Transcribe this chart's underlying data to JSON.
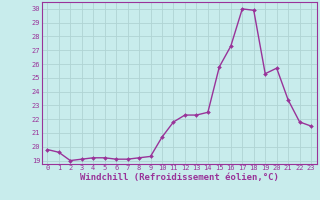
{
  "x": [
    0,
    1,
    2,
    3,
    4,
    5,
    6,
    7,
    8,
    9,
    10,
    11,
    12,
    13,
    14,
    15,
    16,
    17,
    18,
    19,
    20,
    21,
    22,
    23
  ],
  "y": [
    19.8,
    19.6,
    19.0,
    19.1,
    19.2,
    19.2,
    19.1,
    19.1,
    19.2,
    19.3,
    20.7,
    21.8,
    22.3,
    22.3,
    22.5,
    25.8,
    27.3,
    30.0,
    29.9,
    25.3,
    25.7,
    23.4,
    21.8,
    21.5
  ],
  "line_color": "#993399",
  "marker": "D",
  "marker_size": 2.0,
  "bg_color": "#c8ecec",
  "grid_color": "#b0d4d4",
  "xlabel": "Windchill (Refroidissement éolien,°C)",
  "ylabel": "",
  "xlim": [
    -0.5,
    23.5
  ],
  "ylim": [
    18.75,
    30.5
  ],
  "yticks": [
    19,
    20,
    21,
    22,
    23,
    24,
    25,
    26,
    27,
    28,
    29,
    30
  ],
  "xticks": [
    0,
    1,
    2,
    3,
    4,
    5,
    6,
    7,
    8,
    9,
    10,
    11,
    12,
    13,
    14,
    15,
    16,
    17,
    18,
    19,
    20,
    21,
    22,
    23
  ],
  "tick_label_fontsize": 5.0,
  "xlabel_fontsize": 6.5,
  "line_width": 1.0,
  "spine_color": "#993399",
  "axis_line_color": "#993399"
}
